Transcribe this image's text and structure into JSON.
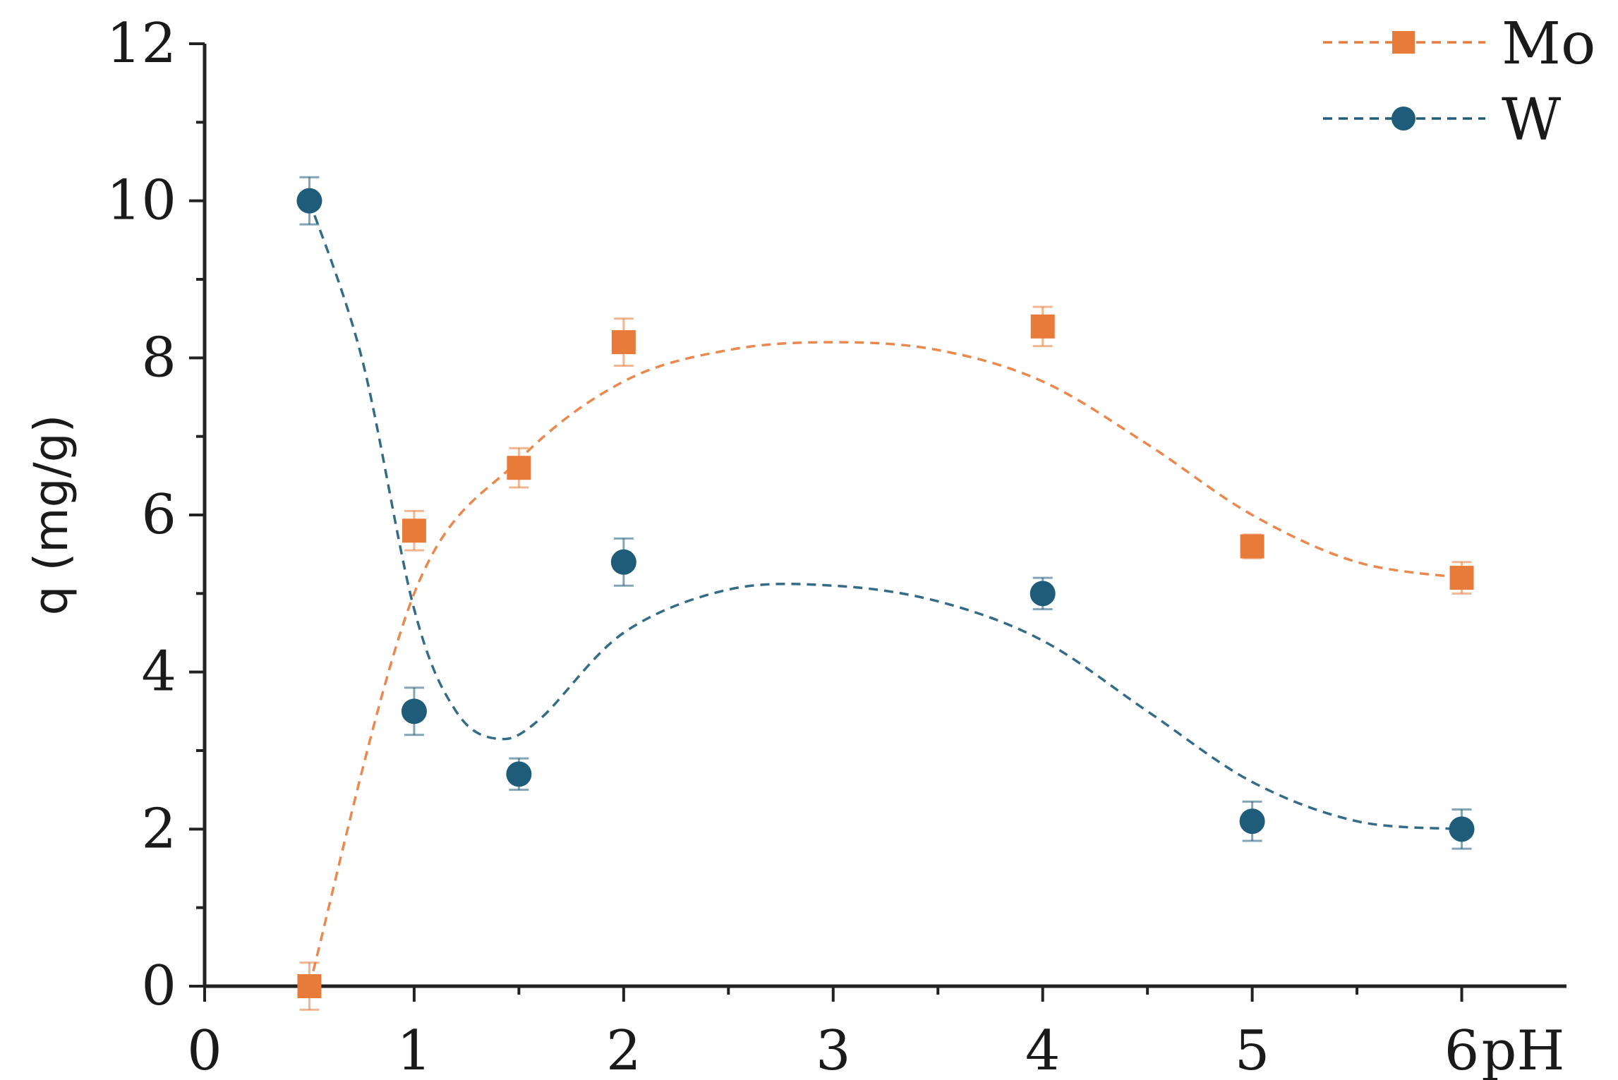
{
  "chart_data": {
    "type": "scatter",
    "xlabel": "pH",
    "ylabel": "q (mg/g)",
    "xlim": [
      0,
      6.5
    ],
    "ylim": [
      0,
      12
    ],
    "x_ticks": [
      0,
      1,
      2,
      3,
      4,
      5,
      6
    ],
    "x_tick_labels": [
      "0",
      "1",
      "2",
      "3",
      "4",
      "5",
      "6"
    ],
    "y_ticks": [
      0,
      2,
      4,
      6,
      8,
      10,
      12
    ],
    "y_tick_labels": [
      "0",
      "2",
      "4",
      "6",
      "8",
      "10",
      "12"
    ],
    "grid": false,
    "legend_position": "top-right",
    "fit_lines": "dashed smooth curves through each series",
    "series": [
      {
        "name": "Mo",
        "color": "#e87b3a",
        "marker": "square",
        "x": [
          0.5,
          1,
          1.5,
          2,
          4,
          5,
          6
        ],
        "y": [
          0,
          5.8,
          6.6,
          8.2,
          8.4,
          5.6,
          5.2
        ],
        "error": [
          0.3,
          0.25,
          0.25,
          0.3,
          0.25,
          0.15,
          0.2
        ],
        "fit": [
          [
            0.5,
            0
          ],
          [
            1,
            5.0
          ],
          [
            1.5,
            6.7
          ],
          [
            2,
            7.7
          ],
          [
            2.5,
            8.1
          ],
          [
            3,
            8.2
          ],
          [
            3.5,
            8.1
          ],
          [
            4,
            7.7
          ],
          [
            4.5,
            6.9
          ],
          [
            5,
            6.0
          ],
          [
            5.5,
            5.4
          ],
          [
            6,
            5.2
          ]
        ]
      },
      {
        "name": "W",
        "color": "#1e5c7a",
        "marker": "circle",
        "x": [
          0.5,
          1,
          1.5,
          2,
          4,
          5,
          6
        ],
        "y": [
          10,
          3.5,
          2.7,
          5.4,
          5.0,
          2.1,
          2.0
        ],
        "error": [
          0.3,
          0.3,
          0.2,
          0.3,
          0.2,
          0.25,
          0.25
        ],
        "fit": [
          [
            0.5,
            10
          ],
          [
            0.75,
            8.0
          ],
          [
            1,
            4.8
          ],
          [
            1.2,
            3.5
          ],
          [
            1.4,
            3.15
          ],
          [
            1.6,
            3.4
          ],
          [
            2,
            4.5
          ],
          [
            2.5,
            5.05
          ],
          [
            3,
            5.1
          ],
          [
            3.5,
            4.9
          ],
          [
            4,
            4.4
          ],
          [
            4.5,
            3.5
          ],
          [
            5,
            2.6
          ],
          [
            5.5,
            2.1
          ],
          [
            6,
            2.0
          ]
        ]
      }
    ]
  }
}
